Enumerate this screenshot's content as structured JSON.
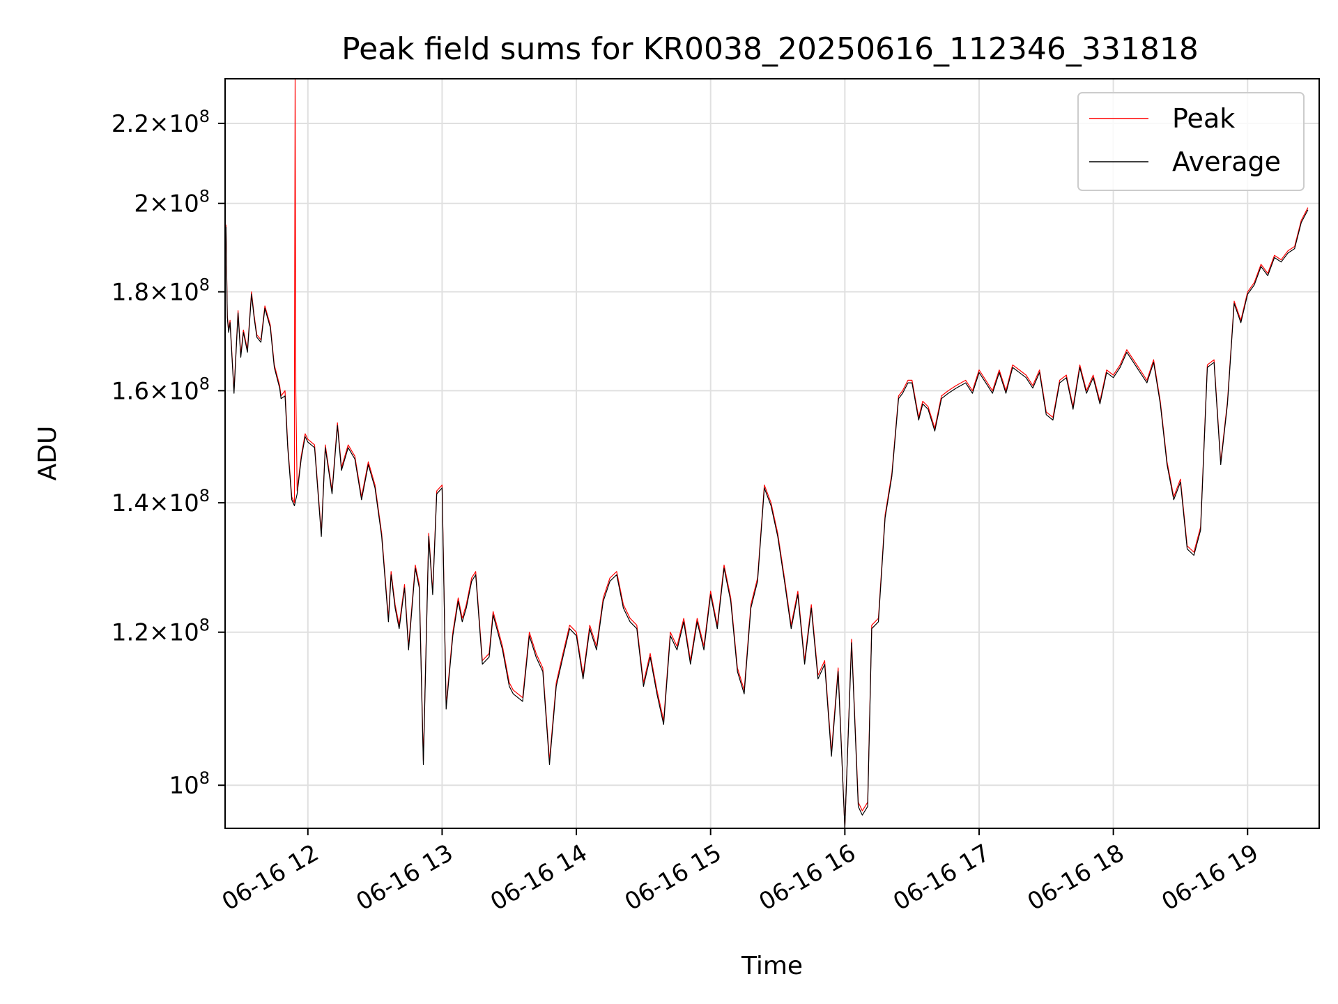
{
  "chart_data": {
    "type": "line",
    "title": "Peak field sums for KR0038_20250616_112346_331818",
    "xlabel": "Time",
    "ylabel": "ADU",
    "yscale": "log",
    "grid": true,
    "legend_placement": "top-right",
    "xlim": [
      "06-16 11:23",
      "06-16 19:32"
    ],
    "ylim": [
      95000000,
      232000000
    ],
    "x_ticks": [
      "06-16 12",
      "06-16 13",
      "06-16 14",
      "06-16 15",
      "06-16 16",
      "06-16 17",
      "06-16 18",
      "06-16 19"
    ],
    "y_ticks": [
      {
        "value": 100000000,
        "mantissa": "",
        "exponent": "8"
      },
      {
        "value": 120000000,
        "mantissa": "1.2",
        "exponent": "8"
      },
      {
        "value": 140000000,
        "mantissa": "1.4",
        "exponent": "8"
      },
      {
        "value": 160000000,
        "mantissa": "1.6",
        "exponent": "8"
      },
      {
        "value": 180000000,
        "mantissa": "1.8",
        "exponent": "8"
      },
      {
        "value": 200000000,
        "mantissa": "2",
        "exponent": "8"
      },
      {
        "value": 220000000,
        "mantissa": "2.2",
        "exponent": "8"
      }
    ],
    "x_hours": [
      11.39,
      11.4,
      11.41,
      11.42,
      11.45,
      11.48,
      11.5,
      11.52,
      11.55,
      11.58,
      11.6,
      11.62,
      11.65,
      11.68,
      11.72,
      11.75,
      11.79,
      11.8,
      11.83,
      11.85,
      11.88,
      11.9,
      11.92,
      11.95,
      11.98,
      12.0,
      12.05,
      12.1,
      12.13,
      12.18,
      12.22,
      12.25,
      12.3,
      12.35,
      12.4,
      12.45,
      12.5,
      12.55,
      12.6,
      12.62,
      12.65,
      12.68,
      12.72,
      12.75,
      12.8,
      12.83,
      12.86,
      12.9,
      12.93,
      12.96,
      13.0,
      13.03,
      13.08,
      13.12,
      13.15,
      13.18,
      13.22,
      13.25,
      13.3,
      13.35,
      13.38,
      13.45,
      13.5,
      13.53,
      13.6,
      13.65,
      13.7,
      13.75,
      13.8,
      13.85,
      13.9,
      13.95,
      14.0,
      14.05,
      14.1,
      14.15,
      14.2,
      14.25,
      14.3,
      14.35,
      14.4,
      14.45,
      14.5,
      14.55,
      14.6,
      14.65,
      14.7,
      14.75,
      14.8,
      14.85,
      14.9,
      14.95,
      15.0,
      15.05,
      15.1,
      15.15,
      15.2,
      15.25,
      15.3,
      15.35,
      15.4,
      15.45,
      15.5,
      15.55,
      15.6,
      15.65,
      15.7,
      15.75,
      15.8,
      15.85,
      15.9,
      15.95,
      16.0,
      16.05,
      16.1,
      16.13,
      16.17,
      16.2,
      16.25,
      16.3,
      16.35,
      16.4,
      16.43,
      16.47,
      16.5,
      16.55,
      16.58,
      16.62,
      16.67,
      16.72,
      16.77,
      16.83,
      16.9,
      16.95,
      17.0,
      17.05,
      17.1,
      17.15,
      17.2,
      17.25,
      17.3,
      17.35,
      17.4,
      17.45,
      17.5,
      17.55,
      17.6,
      17.65,
      17.7,
      17.75,
      17.8,
      17.85,
      17.9,
      17.95,
      18.0,
      18.05,
      18.1,
      18.15,
      18.2,
      18.25,
      18.3,
      18.35,
      18.4,
      18.45,
      18.5,
      18.55,
      18.6,
      18.65,
      18.7,
      18.75,
      18.8,
      18.85,
      18.9,
      18.95,
      19.0,
      19.05,
      19.1,
      19.15,
      19.2,
      19.25,
      19.3,
      19.35,
      19.4,
      19.45,
      19.5,
      19.53
    ],
    "series": [
      {
        "name": "Peak",
        "color": "#ff0000",
        "width": 1.2,
        "extra_points": [
          [
            11.9,
            160000000
          ],
          [
            11.905,
            240000000
          ],
          [
            11.91,
            160000000
          ]
        ],
        "values": [
          195000000,
          175000000,
          172000000,
          174000000,
          160000000,
          176000000,
          167000000,
          172000000,
          168000000,
          180000000,
          175000000,
          171000000,
          170000000,
          177000000,
          173000000,
          165000000,
          161000000,
          159000000,
          160000000,
          150000000,
          141000000,
          140000000,
          142000000,
          148000000,
          152000000,
          151000000,
          150000000,
          135000000,
          150000000,
          142000000,
          154000000,
          146000000,
          150000000,
          148000000,
          141000000,
          147000000,
          143000000,
          135000000,
          122000000,
          129000000,
          124000000,
          121000000,
          127000000,
          118000000,
          130000000,
          127000000,
          103000000,
          135000000,
          126000000,
          142000000,
          143000000,
          110000000,
          120000000,
          125000000,
          122000000,
          124000000,
          128000000,
          129000000,
          116000000,
          117000000,
          123000000,
          118000000,
          113000000,
          112000000,
          111000000,
          120000000,
          117000000,
          115000000,
          103000000,
          113000000,
          117000000,
          121000000,
          120000000,
          114000000,
          121000000,
          118000000,
          125000000,
          128000000,
          129000000,
          124000000,
          122000000,
          121000000,
          113000000,
          117000000,
          112000000,
          108000000,
          120000000,
          118000000,
          122000000,
          116000000,
          122000000,
          118000000,
          126000000,
          121000000,
          130000000,
          125000000,
          115000000,
          112000000,
          124000000,
          128000000,
          143000000,
          140000000,
          135000000,
          128000000,
          121000000,
          126000000,
          116000000,
          124000000,
          114000000,
          116000000,
          104000000,
          115000000,
          95000000,
          119000000,
          98000000,
          97000000,
          98000000,
          121000000,
          122000000,
          138000000,
          145000000,
          159000000,
          160000000,
          162000000,
          162000000,
          155000000,
          158000000,
          157000000,
          153000000,
          159000000,
          160000000,
          161000000,
          162000000,
          160000000,
          164000000,
          162000000,
          160000000,
          164000000,
          160000000,
          165000000,
          164000000,
          163000000,
          161000000,
          164000000,
          156000000,
          155000000,
          162000000,
          163000000,
          157000000,
          165000000,
          160000000,
          163000000,
          158000000,
          164000000,
          163000000,
          165000000,
          168000000,
          166000000,
          164000000,
          162000000,
          166000000,
          158000000,
          147000000,
          141000000,
          144000000,
          133000000,
          132000000,
          136000000,
          165000000,
          166000000,
          147000000,
          158000000,
          178000000,
          174000000,
          180000000,
          182000000,
          186000000,
          184000000,
          188000000,
          187000000,
          189000000,
          190000000,
          196000000,
          199000000
        ]
      },
      {
        "name": "Average",
        "color": "#000000",
        "width": 1.2,
        "extra_points": [],
        "values": [
          194500000,
          174500000,
          171500000,
          173500000,
          159500000,
          175500000,
          166500000,
          171500000,
          167500000,
          179500000,
          174500000,
          170500000,
          169500000,
          176500000,
          172500000,
          164500000,
          160500000,
          158500000,
          159000000,
          149500000,
          140500000,
          139500000,
          141500000,
          147500000,
          151500000,
          150500000,
          149500000,
          134500000,
          149500000,
          141500000,
          153500000,
          145500000,
          149500000,
          147500000,
          140500000,
          146500000,
          142500000,
          134500000,
          121500000,
          128500000,
          123500000,
          120500000,
          126500000,
          117500000,
          129500000,
          126500000,
          102500000,
          134500000,
          125500000,
          141500000,
          142500000,
          109500000,
          119500000,
          124500000,
          121500000,
          123500000,
          127500000,
          128500000,
          115500000,
          116500000,
          122500000,
          117500000,
          112500000,
          111500000,
          110500000,
          119500000,
          116500000,
          114500000,
          102500000,
          112500000,
          116500000,
          120500000,
          119500000,
          113500000,
          120500000,
          117500000,
          124500000,
          127500000,
          128500000,
          123500000,
          121500000,
          120500000,
          112500000,
          116500000,
          111500000,
          107500000,
          119500000,
          117500000,
          121500000,
          115500000,
          121500000,
          117500000,
          125500000,
          120500000,
          129500000,
          124500000,
          114500000,
          111500000,
          123500000,
          127500000,
          142500000,
          139500000,
          134500000,
          127500000,
          120500000,
          125500000,
          115500000,
          123500000,
          113500000,
          115500000,
          103500000,
          114500000,
          94500000,
          118500000,
          97500000,
          96500000,
          97500000,
          120500000,
          121500000,
          137500000,
          144500000,
          158500000,
          159500000,
          161500000,
          161500000,
          154500000,
          157500000,
          156500000,
          152500000,
          158500000,
          159500000,
          160500000,
          161500000,
          159500000,
          163500000,
          161500000,
          159500000,
          163500000,
          159500000,
          164500000,
          163500000,
          162500000,
          160500000,
          163500000,
          155500000,
          154500000,
          161500000,
          162500000,
          156500000,
          164500000,
          159500000,
          162500000,
          157500000,
          163500000,
          162500000,
          164500000,
          167500000,
          165500000,
          163500000,
          161500000,
          165500000,
          157500000,
          146500000,
          140500000,
          143500000,
          132500000,
          131500000,
          135500000,
          164500000,
          165500000,
          146500000,
          157500000,
          177500000,
          173500000,
          179500000,
          181500000,
          185500000,
          183500000,
          187500000,
          186500000,
          188500000,
          189500000,
          195500000,
          198500000
        ]
      }
    ]
  }
}
